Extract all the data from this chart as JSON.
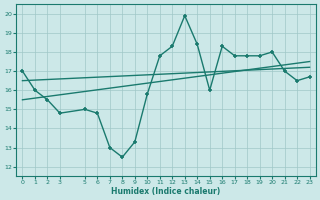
{
  "xlabel": "Humidex (Indice chaleur)",
  "bg_color": "#cce8e8",
  "line_color": "#1a7a6e",
  "grid_color": "#a0c8c8",
  "xticks": [
    0,
    1,
    2,
    3,
    5,
    6,
    7,
    8,
    9,
    10,
    11,
    12,
    13,
    14,
    15,
    16,
    17,
    18,
    19,
    20,
    21,
    22,
    23
  ],
  "ylim": [
    11.5,
    20.5
  ],
  "xlim": [
    -0.5,
    23.5
  ],
  "yticks": [
    12,
    13,
    14,
    15,
    16,
    17,
    18,
    19,
    20
  ],
  "line1_x": [
    0,
    1,
    2,
    3,
    5,
    6,
    7,
    8,
    9,
    10,
    11,
    12,
    13,
    14,
    15,
    16,
    17,
    18,
    19,
    20,
    21,
    22,
    23
  ],
  "line1_y": [
    17.0,
    16.0,
    15.5,
    14.8,
    15.0,
    14.8,
    13.0,
    12.5,
    13.3,
    15.8,
    17.8,
    18.3,
    19.9,
    18.4,
    16.0,
    18.3,
    17.8,
    17.8,
    17.8,
    18.0,
    17.0,
    16.5,
    16.7
  ],
  "line2_x": [
    0,
    23
  ],
  "line2_y": [
    15.5,
    17.5
  ],
  "line3_x": [
    0,
    23
  ],
  "line3_y": [
    16.5,
    17.2
  ]
}
